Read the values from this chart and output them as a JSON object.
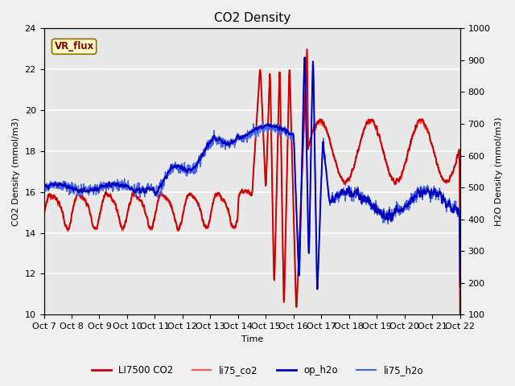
{
  "title": "CO2 Density",
  "xlabel": "Time",
  "ylabel_left": "CO2 Density (mmol/m3)",
  "ylabel_right": "H2O Density (mmol/m3)",
  "xlim": [
    0,
    15
  ],
  "ylim_left": [
    10,
    24
  ],
  "ylim_right": [
    100,
    1000
  ],
  "yticks_left": [
    10,
    12,
    14,
    16,
    18,
    20,
    22,
    24
  ],
  "yticks_right": [
    100,
    200,
    300,
    400,
    500,
    600,
    700,
    800,
    900,
    1000
  ],
  "xtick_labels": [
    "Oct 7",
    "Oct 8",
    "Oct 9",
    "Oct 10",
    "Oct 11",
    "Oct 12",
    "Oct 13",
    "Oct 14",
    "Oct 15",
    "Oct 16",
    "Oct 17",
    "Oct 18",
    "Oct 19",
    "Oct 20",
    "Oct 21",
    "Oct 22"
  ],
  "vr_flux_box_color": "#ffffcc",
  "vr_flux_border_color": "#996600",
  "vr_flux_text_color": "#880000",
  "plot_bg_color": "#e8e8e8",
  "fig_bg_color": "#f0f0f0",
  "grid_color": "#ffffff",
  "series_LI7500_CO2_color": "#cc0000",
  "series_li75_co2_color": "#ff5555",
  "series_op_h2o_color": "#0000bb",
  "series_li75_h2o_color": "#4466ee",
  "lw_thick": 1.4,
  "lw_thin": 1.0,
  "title_fontsize": 11,
  "axis_label_fontsize": 8,
  "tick_fontsize": 8,
  "legend_fontsize": 8.5
}
